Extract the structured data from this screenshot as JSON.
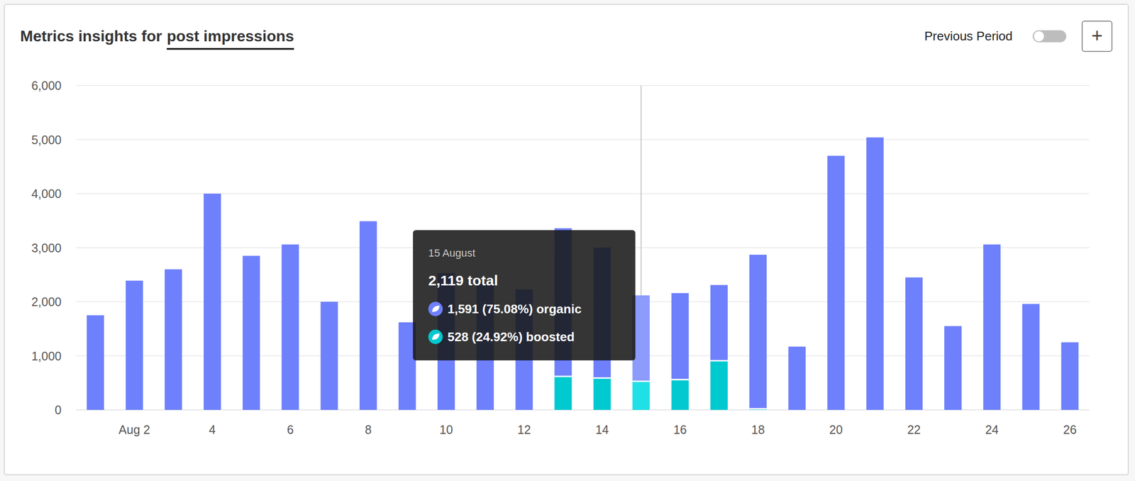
{
  "chart_data": {
    "type": "bar",
    "title": "Metrics insights for",
    "title_metric": "post impressions",
    "controls": {
      "previous_period": "Previous Period",
      "add_button": "+"
    },
    "categories": [
      null,
      "Aug 2",
      null,
      "4",
      null,
      "6",
      null,
      "8",
      null,
      "10",
      null,
      "12",
      null,
      "14",
      null,
      "16",
      null,
      "18",
      null,
      "20",
      null,
      "22",
      null,
      "24",
      null,
      "26"
    ],
    "series": [
      {
        "name": "organic",
        "color": "#6e80fb",
        "values": [
          1750,
          2390,
          2600,
          4000,
          2850,
          3060,
          2000,
          3490,
          1620,
          2530,
          2350,
          2230,
          2740,
          2410,
          1591,
          1600,
          1400,
          2850,
          1170,
          4700,
          5040,
          2450,
          1550,
          3060,
          1960,
          1250
        ]
      },
      {
        "name": "boosted",
        "color": "#00c9cf",
        "values": [
          0,
          0,
          0,
          0,
          0,
          0,
          0,
          0,
          0,
          0,
          0,
          0,
          620,
          590,
          528,
          560,
          910,
          20,
          0,
          0,
          0,
          0,
          0,
          0,
          0,
          0
        ]
      }
    ],
    "stacked": true,
    "grid": true,
    "ylim": [
      0,
      6000
    ],
    "yticks": [
      0,
      {
        "value": 1000,
        "label": "1,000"
      },
      {
        "value": 2000,
        "label": "2,000"
      },
      {
        "value": 3000,
        "label": "3,000"
      },
      {
        "value": 4000,
        "label": "4,000"
      },
      {
        "value": 5000,
        "label": "5,000"
      },
      {
        "value": 6000,
        "label": "6,000"
      }
    ],
    "tooltip": {
      "title": "15 August",
      "total": "2,119 total",
      "items": [
        "1,591 (75.08%) organic",
        "528 (24.92%) boosted"
      ]
    }
  }
}
